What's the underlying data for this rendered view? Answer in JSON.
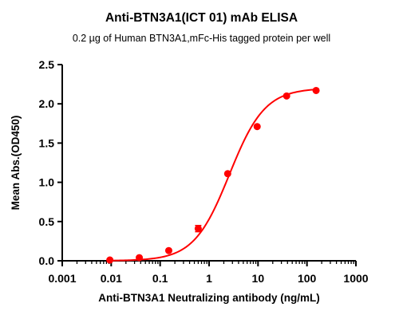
{
  "chart_data": {
    "type": "scatter",
    "title": "Anti-BTN3A1(ICT 01) mAb ELISA",
    "subtitle": "0.2 µg of Human BTN3A1,mFc-His tagged protein per well",
    "xlabel": "Anti-BTN3A1 Neutralizing antibody (ng/mL)",
    "ylabel": "Mean Abs.(OD450)",
    "xscale": "log",
    "xlim": [
      0.001,
      1000
    ],
    "ylim": [
      0,
      2.5
    ],
    "xticks": [
      "0.001",
      "0.01",
      "0.1",
      "1",
      "10",
      "100",
      "1000"
    ],
    "yticks": [
      "0.0",
      "0.5",
      "1.0",
      "1.5",
      "2.0",
      "2.5"
    ],
    "grid": false,
    "color": "#ff0000",
    "points": [
      {
        "x": 0.0094,
        "y": 0.01,
        "err": 0.0
      },
      {
        "x": 0.0375,
        "y": 0.04,
        "err": 0.0
      },
      {
        "x": 0.15,
        "y": 0.13,
        "err": 0.0
      },
      {
        "x": 0.6,
        "y": 0.41,
        "err": 0.04
      },
      {
        "x": 2.4,
        "y": 1.11,
        "err": 0.0
      },
      {
        "x": 9.6,
        "y": 1.71,
        "err": 0.0
      },
      {
        "x": 38.4,
        "y": 2.1,
        "err": 0.0
      },
      {
        "x": 153.6,
        "y": 2.17,
        "err": 0.0
      }
    ],
    "fit": {
      "bottom": 0.0,
      "top": 2.2,
      "ec50": 2.6,
      "hill": 1.2
    }
  }
}
